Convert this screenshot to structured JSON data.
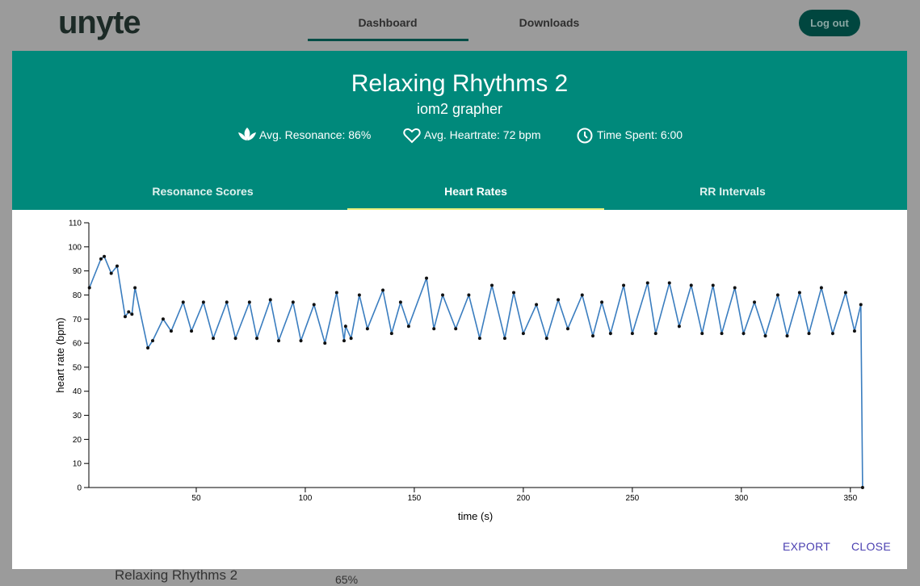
{
  "nav": {
    "logo": "unyte",
    "links": [
      "Dashboard",
      "Downloads"
    ],
    "logout": "Log out"
  },
  "modal": {
    "title": "Relaxing Rhythms 2",
    "subtitle": "iom2 grapher",
    "stats": [
      "Avg. Resonance: 86%",
      "Avg. Heartrate: 72 bpm",
      "Time Spent: 6:00"
    ],
    "tabs": [
      "Resonance Scores",
      "Heart Rates",
      "RR Intervals"
    ],
    "buttons": [
      "EXPORT",
      "CLOSE"
    ]
  },
  "background_row": {
    "name": "Relaxing Rhythms 2",
    "score": "65%"
  },
  "chart_data": {
    "type": "line",
    "x_label": "time (s)",
    "y_label": "heart rate (bpm)",
    "x": [
      1,
      6.3,
      7.8,
      11,
      13.7,
      17.4,
      19,
      20.5,
      21.9,
      27.8,
      30,
      34.8,
      38.5,
      44,
      47.8,
      53.3,
      57.8,
      64,
      68,
      74.4,
      77.8,
      84,
      87.8,
      94.4,
      98,
      104,
      109,
      114.4,
      117.8,
      118.5,
      121,
      124.8,
      128.5,
      135.6,
      139.6,
      143.7,
      147.4,
      155.6,
      159,
      163,
      169,
      175,
      180,
      185.6,
      191.5,
      195.6,
      200,
      206,
      210.7,
      216,
      220.4,
      227,
      231.9,
      236,
      240,
      246,
      250,
      257,
      260.7,
      267,
      271.5,
      277,
      282,
      287,
      291,
      297,
      301,
      306,
      311,
      316.7,
      321,
      326.7,
      331,
      336.7,
      341.9,
      347.8,
      351.9,
      354.8,
      355.6
    ],
    "series": [
      {
        "name": "heart rate",
        "color": "#3a7dbf",
        "marker_color": "#111111",
        "values": [
          83,
          95,
          96,
          89,
          92,
          71,
          73,
          72,
          83,
          58,
          61,
          70,
          65,
          77,
          65,
          77,
          62,
          77,
          62,
          77,
          62,
          78,
          61,
          77,
          61,
          76,
          60,
          81,
          61,
          67,
          62,
          80,
          66,
          82,
          64,
          77,
          67,
          87,
          66,
          80,
          66,
          80,
          62,
          84,
          62,
          81,
          64,
          76,
          62,
          78,
          66,
          80,
          63,
          77,
          64,
          84,
          64,
          85,
          64,
          85,
          67,
          84,
          64,
          84,
          64,
          83,
          64,
          77,
          63,
          80,
          63,
          81,
          64,
          83,
          64,
          81,
          65,
          76,
          0
        ]
      }
    ],
    "xlim": [
      0,
      356
    ],
    "ylim": [
      0,
      110
    ],
    "xticks": [
      50,
      100,
      150,
      200,
      250,
      300,
      350
    ],
    "yticks": [
      0,
      10,
      20,
      30,
      40,
      50,
      60,
      70,
      80,
      90,
      100,
      110
    ]
  }
}
